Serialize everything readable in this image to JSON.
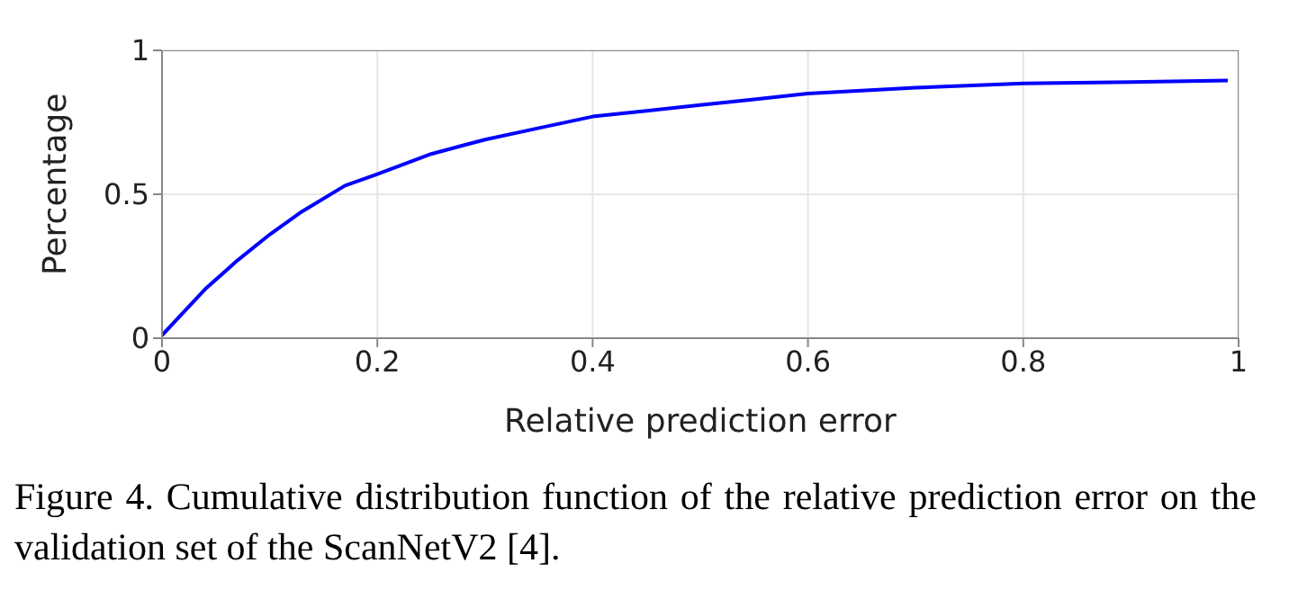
{
  "chart_data": {
    "type": "line",
    "xlabel": "Relative prediction error",
    "ylabel": "Percentage",
    "x": [
      0,
      0.02,
      0.04,
      0.07,
      0.1,
      0.13,
      0.17,
      0.2,
      0.25,
      0.3,
      0.35,
      0.4,
      0.45,
      0.5,
      0.55,
      0.6,
      0.7,
      0.8,
      0.9,
      0.99
    ],
    "series": [
      {
        "color": "#0000ff",
        "values": [
          0.01,
          0.09,
          0.17,
          0.27,
          0.36,
          0.44,
          0.53,
          0.57,
          0.64,
          0.69,
          0.73,
          0.77,
          0.79,
          0.81,
          0.83,
          0.85,
          0.87,
          0.885,
          0.89,
          0.895
        ]
      }
    ],
    "xlim": [
      0,
      1
    ],
    "ylim": [
      0,
      1
    ],
    "xticks": [
      0,
      0.2,
      0.4,
      0.6,
      0.8,
      1
    ],
    "yticks": [
      0,
      0.5,
      1
    ],
    "grid": true,
    "marker": "none",
    "line_style": "solid",
    "annotations": [
      "Figure 4. Cumulative distribution function of the relative prediction error on the validation set of the ScanNetV2 [4]."
    ]
  }
}
